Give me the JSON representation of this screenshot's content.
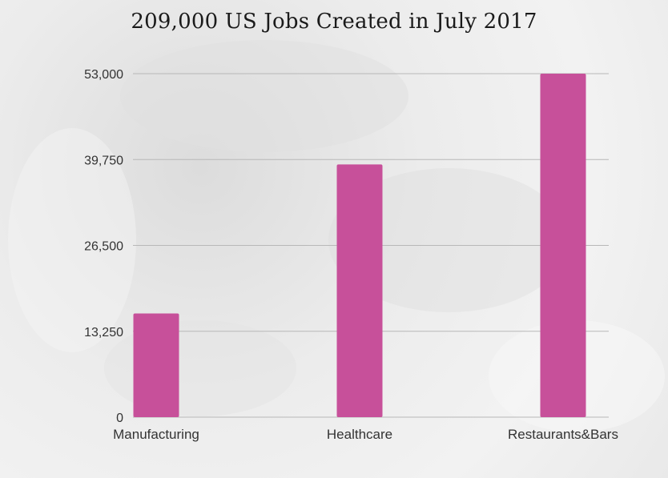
{
  "chart_data": {
    "type": "bar",
    "title": "209,000 US Jobs Created in July 2017",
    "xlabel": "",
    "ylabel": "",
    "categories": [
      "Manufacturing",
      "Healthcare",
      "Restaurants&Bars"
    ],
    "values": [
      16000,
      39000,
      53000
    ],
    "ylim": [
      0,
      53000
    ],
    "yticks": [
      0,
      13250,
      26500,
      39750,
      53000
    ],
    "ytick_labels": [
      "0",
      "13,250",
      "26,500",
      "39,750",
      "53,000"
    ],
    "grid": true,
    "legend": "none",
    "bar_color": "#c7509a",
    "gridline_color": "#b8b8b8"
  }
}
